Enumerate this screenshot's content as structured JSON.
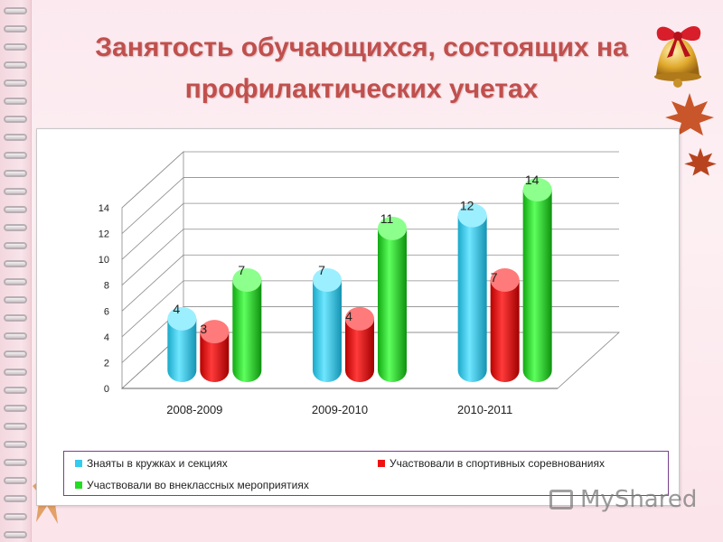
{
  "slide": {
    "title_line1": "Занятость обучающихся, состоящих на",
    "title_line2": "профилактических учетах",
    "watermark": "MyShared"
  },
  "colors": {
    "title": "#c0504d",
    "series_cyan": "#33ccee",
    "series_red": "#ee1111",
    "series_green": "#22dd22",
    "legend_border": "#7a3f8f"
  },
  "icons": [
    "bell-with-bow-icon",
    "maple-leaf-icon",
    "presentation-board-icon"
  ],
  "chart_data": {
    "type": "bar",
    "style": "3d-cylinder",
    "categories": [
      "2008-2009",
      "2009-2010",
      "2010-2011"
    ],
    "series": [
      {
        "name": "Знаяты в кружках и секциях",
        "color": "#33ccee",
        "values": [
          4,
          7,
          12
        ]
      },
      {
        "name": "Участвовали в спортивных соревнованиях",
        "color": "#ee1111",
        "values": [
          3,
          4,
          7
        ]
      },
      {
        "name": "Участвовали во внеклассных мероприятиях",
        "color": "#22dd22",
        "values": [
          7,
          11,
          14
        ]
      }
    ],
    "y_ticks": [
      "0",
      "2",
      "4",
      "6",
      "8",
      "10",
      "12",
      "14"
    ],
    "ylim": [
      0,
      14
    ],
    "grid": true,
    "legend_position": "bottom"
  }
}
